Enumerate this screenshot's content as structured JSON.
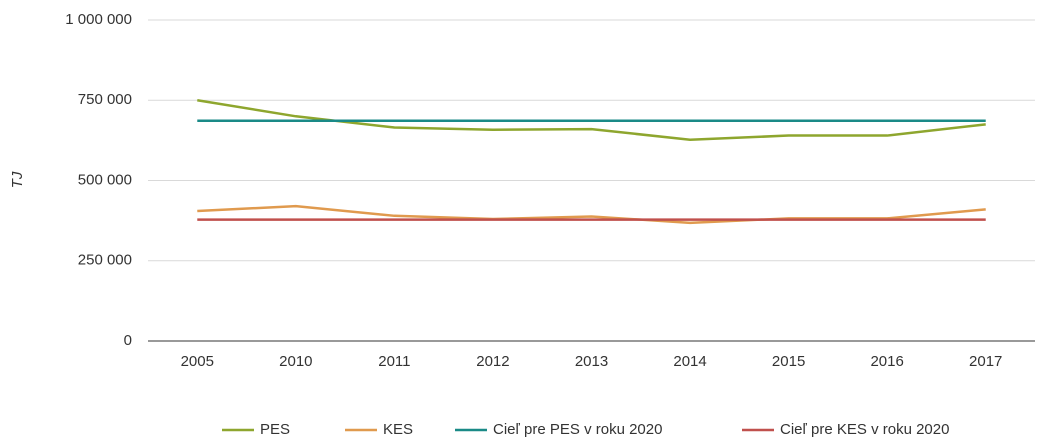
{
  "chart_data": {
    "type": "line",
    "y_label": "TJ",
    "categories": [
      "2005",
      "2010",
      "2011",
      "2012",
      "2013",
      "2014",
      "2015",
      "2016",
      "2017"
    ],
    "series": [
      {
        "name": "PES",
        "color": "#8ea62e",
        "values": [
          750000,
          700000,
          665000,
          658000,
          660000,
          627000,
          640000,
          640000,
          675000
        ]
      },
      {
        "name": "KES",
        "color": "#e09a4e",
        "values": [
          405000,
          420000,
          390000,
          380000,
          388000,
          368000,
          382000,
          382000,
          410000
        ]
      },
      {
        "name": "Cieľ pre PES v roku 2020",
        "color": "#1a8a87",
        "values": [
          686000,
          686000,
          686000,
          686000,
          686000,
          686000,
          686000,
          686000,
          686000
        ]
      },
      {
        "name": "Cieľ pre KES v roku 2020",
        "color": "#c0504d",
        "values": [
          378000,
          378000,
          378000,
          378000,
          378000,
          378000,
          378000,
          378000,
          378000
        ]
      }
    ],
    "ylim": [
      0,
      1000000
    ],
    "yticks": [
      0,
      {
        "value": 250000,
        "label": "250 000"
      },
      {
        "value": 500000,
        "label": "500 000"
      },
      {
        "value": 750000,
        "label": "750 000"
      },
      {
        "value": 1000000,
        "label": "1 000 000"
      }
    ],
    "grid": true,
    "legend": "bottom"
  }
}
